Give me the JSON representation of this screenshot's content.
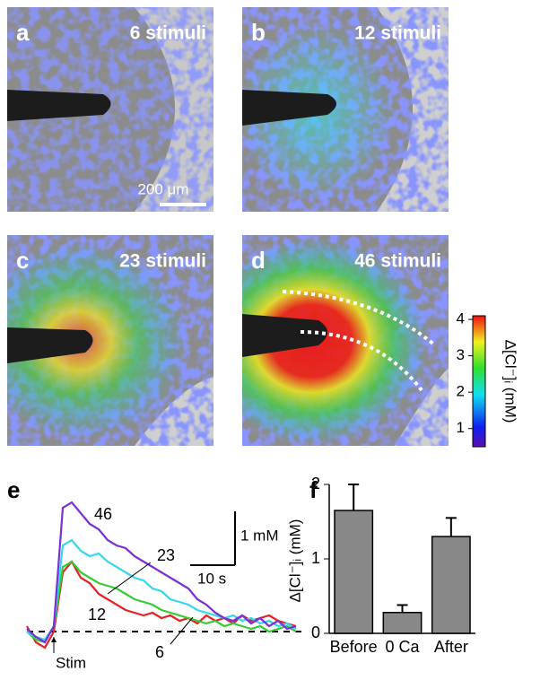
{
  "panels": [
    {
      "label": "a",
      "caption": "6 stimuli"
    },
    {
      "label": "b",
      "caption": "12 stimuli"
    },
    {
      "label": "c",
      "caption": "23 stimuli"
    },
    {
      "label": "d",
      "caption": "46 stimuli"
    }
  ],
  "scale_bar": "200 μm",
  "colorbar": {
    "label": "Δ[Cl⁻]ᵢ (mM)",
    "clim": [
      0.5,
      4.1
    ],
    "ticks": [
      1,
      2,
      3,
      4
    ]
  },
  "chart_data": [
    {
      "type": "line",
      "panel": "e",
      "xlim": [
        0,
        62
      ],
      "ylim": [
        -0.5,
        2.6
      ],
      "baseline": 0,
      "stim": {
        "label": "Stim",
        "x": 6
      },
      "scalebar": {
        "y": 1,
        "y_label": "1 mM",
        "x": 10,
        "x_label": "10 s"
      },
      "x": [
        0,
        2,
        4,
        6,
        8,
        10,
        12,
        14,
        16,
        18,
        20,
        22,
        24,
        26,
        28,
        30,
        32,
        34,
        36,
        38,
        40,
        42,
        44,
        46,
        48,
        50,
        52,
        54,
        56,
        58,
        60
      ],
      "series": [
        {
          "name": "46",
          "color": "#7b2fd6",
          "values": [
            0.05,
            -0.1,
            -0.2,
            0.1,
            2.3,
            2.4,
            2.2,
            2.0,
            1.9,
            1.7,
            1.6,
            1.55,
            1.4,
            1.3,
            1.2,
            1.1,
            1.0,
            0.9,
            0.8,
            0.6,
            0.5,
            0.35,
            0.25,
            0.2,
            0.3,
            0.15,
            0.25,
            0.1,
            0.2,
            0.05,
            0.1
          ]
        },
        {
          "name": "23",
          "color": "#33d8ee",
          "values": [
            0,
            -0.1,
            -0.15,
            0.1,
            1.6,
            1.7,
            1.5,
            1.4,
            1.45,
            1.3,
            1.2,
            1.1,
            1.0,
            0.95,
            0.8,
            0.75,
            0.6,
            0.55,
            0.5,
            0.4,
            0.35,
            0.3,
            0.25,
            0.3,
            0.2,
            0.25,
            0.15,
            0.2,
            0.1,
            0.15,
            0.05
          ]
        },
        {
          "name": "12",
          "color": "#33cc33",
          "values": [
            0,
            -0.15,
            -0.2,
            0.1,
            1.2,
            1.3,
            1.1,
            1.0,
            0.9,
            0.85,
            0.8,
            0.7,
            0.6,
            0.55,
            0.5,
            0.4,
            0.35,
            0.3,
            0.25,
            0.2,
            0.15,
            0.2,
            0.1,
            0.15,
            0.1,
            0.05,
            0.1,
            0.0,
            0.05,
            0.1,
            0.0
          ]
        },
        {
          "name": "6",
          "color": "#e82020",
          "values": [
            0.1,
            -0.2,
            -0.3,
            0.0,
            1.1,
            1.3,
            1.0,
            0.9,
            0.7,
            0.6,
            0.5,
            0.4,
            0.35,
            0.3,
            0.35,
            0.25,
            0.3,
            0.2,
            0.25,
            0.15,
            0.3,
            0.2,
            0.25,
            0.15,
            0.3,
            0.2,
            0.25,
            0.3,
            0.2,
            0.15,
            0.1
          ]
        }
      ]
    },
    {
      "type": "bar",
      "panel": "f",
      "ylabel": "Δ[Cl⁻]ᵢ (mM)",
      "categories": [
        "Before",
        "0 Ca",
        "After"
      ],
      "values": [
        1.65,
        0.28,
        1.3
      ],
      "errors": [
        0.35,
        0.1,
        0.25
      ],
      "color": "#888888",
      "ylim": [
        0,
        2
      ],
      "yticks": [
        0,
        1,
        2
      ]
    }
  ]
}
